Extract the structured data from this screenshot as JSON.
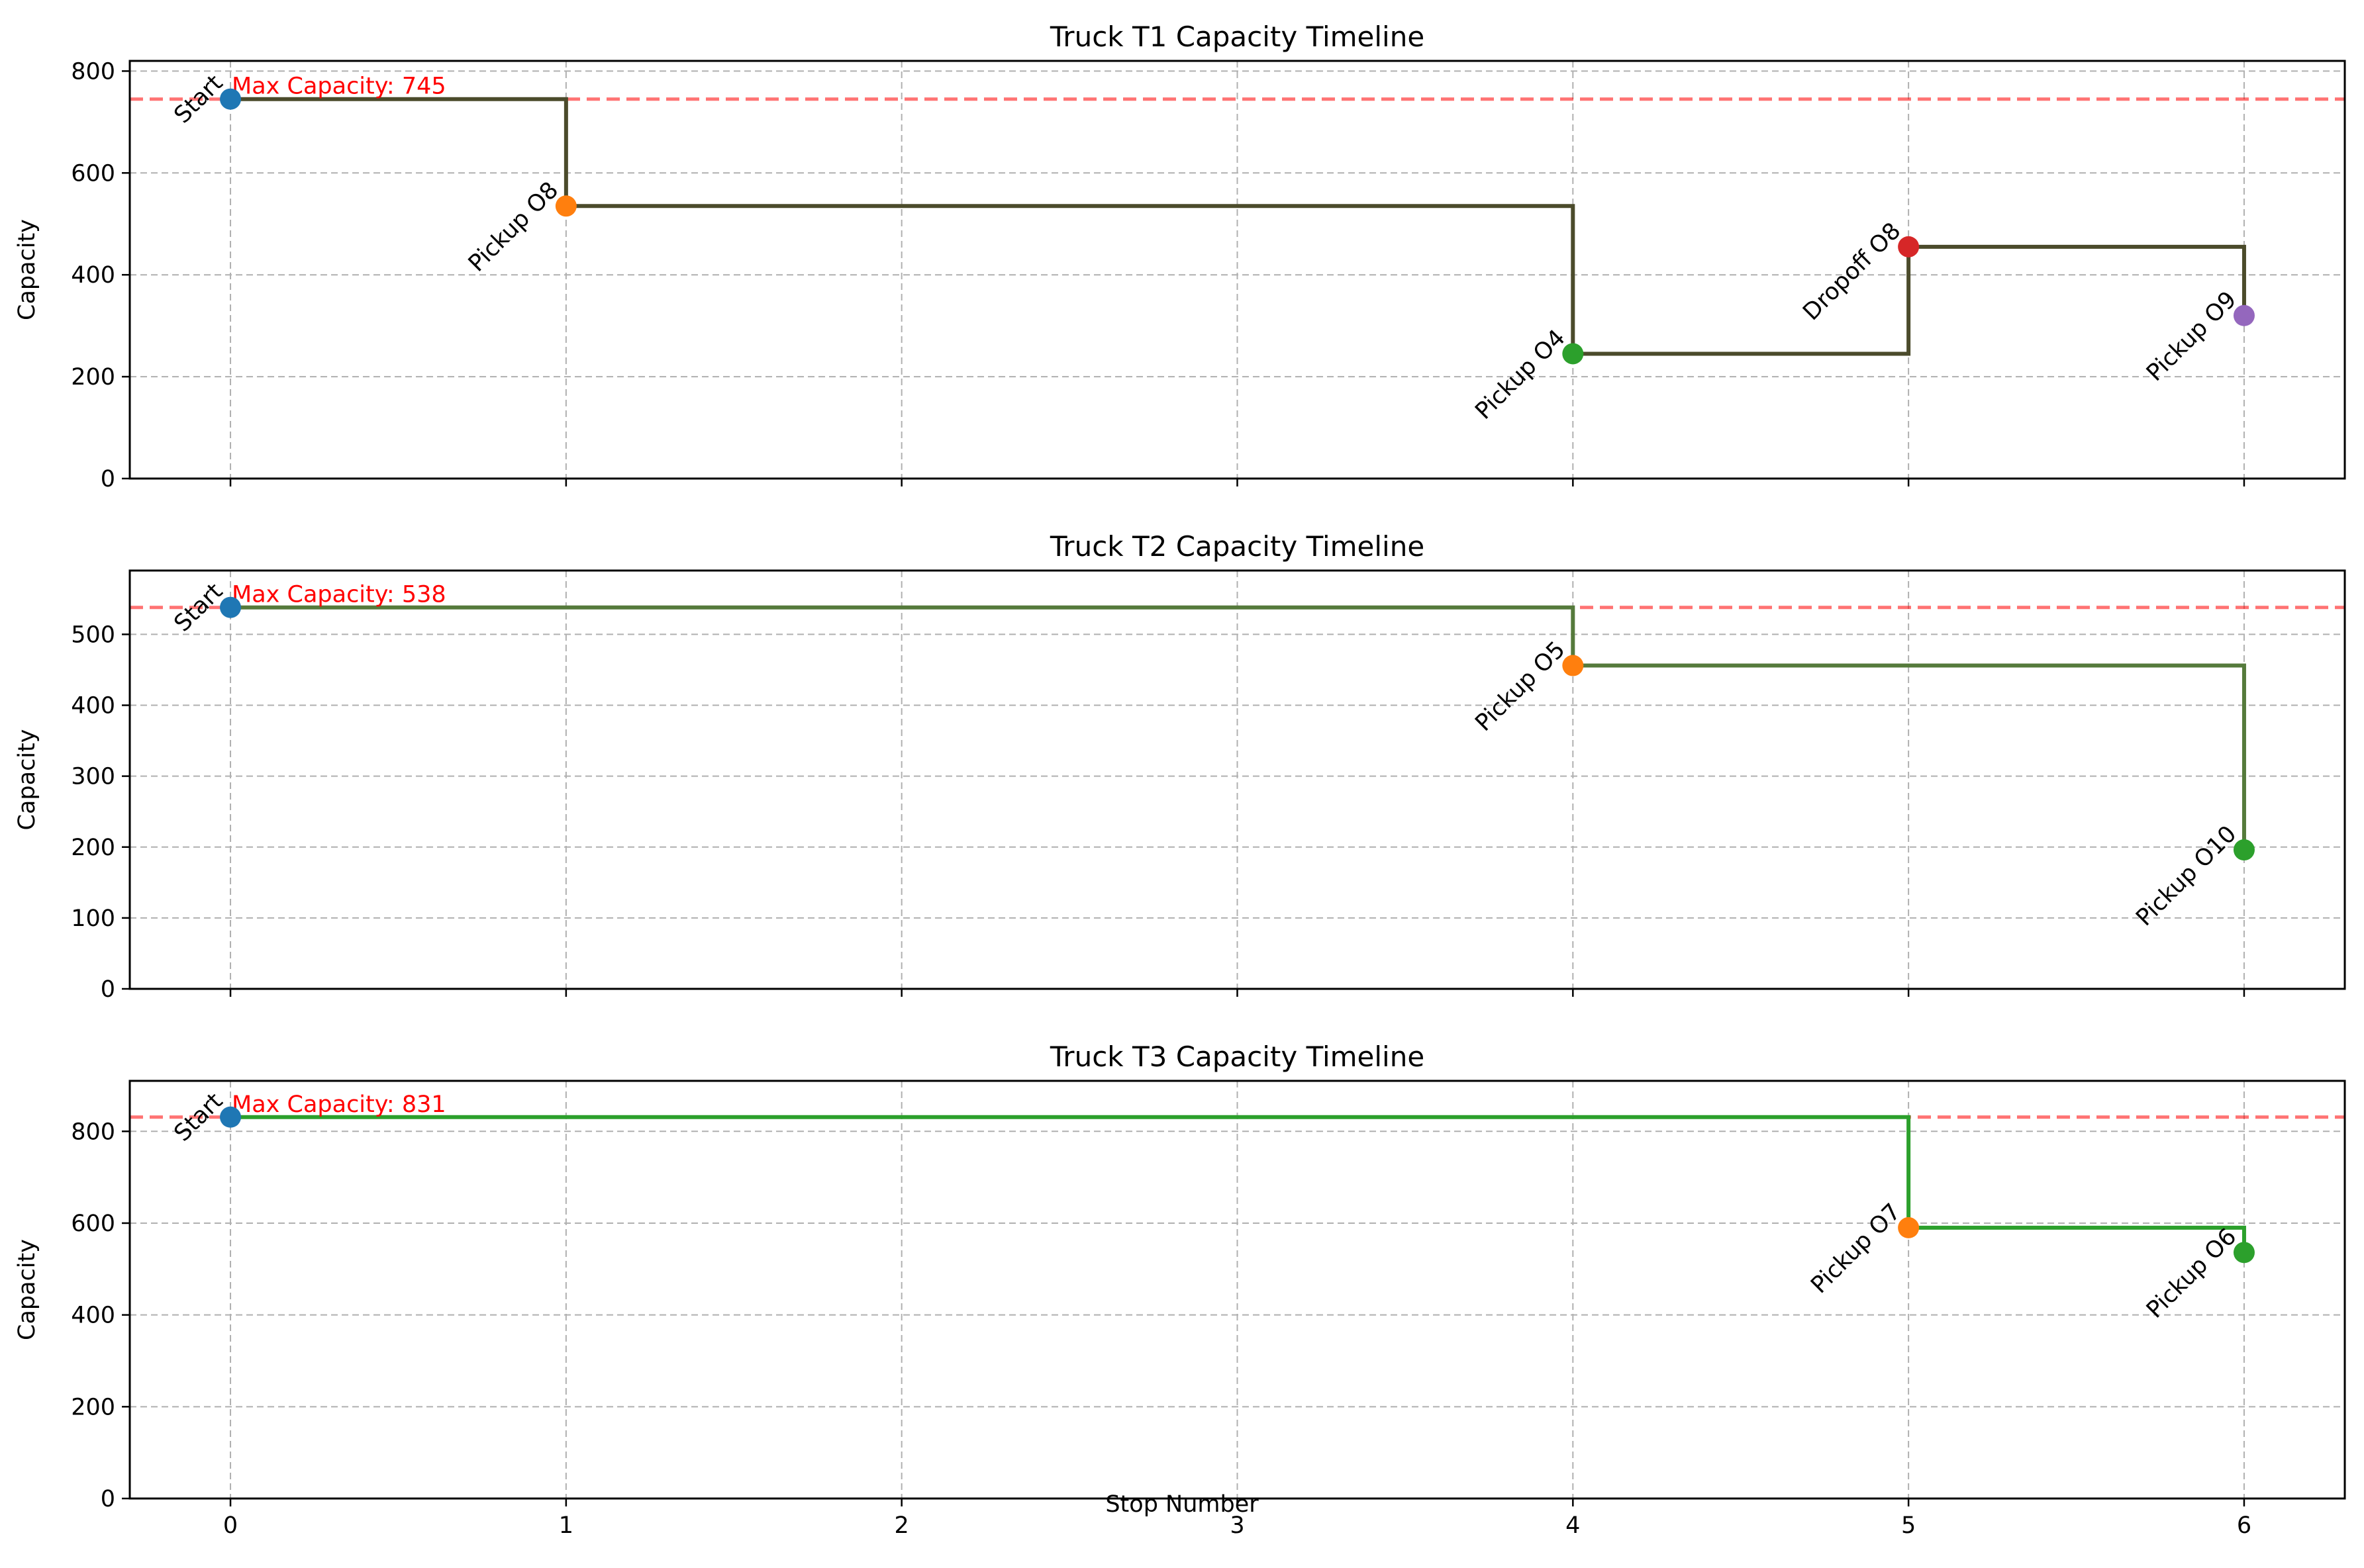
{
  "xlabel": "Stop Number",
  "chart_data": [
    {
      "type": "line",
      "title": "Truck T1 Capacity Timeline",
      "ylabel": "Capacity",
      "xlim": [
        -0.3,
        6.3
      ],
      "ylim": [
        0,
        820
      ],
      "xticks": [
        0,
        1,
        2,
        3,
        4,
        5,
        6
      ],
      "yticks": [
        0,
        200,
        400,
        600,
        800
      ],
      "grid": true,
      "line_color": "#4b4b2b",
      "max_capacity": {
        "value": 745,
        "label": "Max Capacity: 745",
        "color": "#ff0000"
      },
      "points": [
        {
          "x": 0,
          "y": 745,
          "label": "Start",
          "color": "#1f77b4"
        },
        {
          "x": 1,
          "y": 535,
          "label": "Pickup O8",
          "color": "#ff7f0e"
        },
        {
          "x": 4,
          "y": 245,
          "label": "Pickup O4",
          "color": "#2ca02c"
        },
        {
          "x": 5,
          "y": 455,
          "label": "Dropoff O8",
          "color": "#d62728"
        },
        {
          "x": 6,
          "y": 320,
          "label": "Pickup O9",
          "color": "#9467bd"
        }
      ]
    },
    {
      "type": "line",
      "title": "Truck T2 Capacity Timeline",
      "ylabel": "Capacity",
      "xlim": [
        -0.3,
        6.3
      ],
      "ylim": [
        0,
        590
      ],
      "xticks": [
        0,
        1,
        2,
        3,
        4,
        5,
        6
      ],
      "yticks": [
        0,
        100,
        200,
        300,
        400,
        500
      ],
      "grid": true,
      "line_color": "#557a3b",
      "max_capacity": {
        "value": 538,
        "label": "Max Capacity: 538",
        "color": "#ff0000"
      },
      "points": [
        {
          "x": 0,
          "y": 538,
          "label": "Start",
          "color": "#1f77b4"
        },
        {
          "x": 4,
          "y": 456,
          "label": "Pickup O5",
          "color": "#ff7f0e"
        },
        {
          "x": 6,
          "y": 196,
          "label": "Pickup O10",
          "color": "#2ca02c"
        }
      ]
    },
    {
      "type": "line",
      "title": "Truck T3 Capacity Timeline",
      "ylabel": "Capacity",
      "xlim": [
        -0.3,
        6.3
      ],
      "ylim": [
        0,
        910
      ],
      "xticks": [
        0,
        1,
        2,
        3,
        4,
        5,
        6
      ],
      "yticks": [
        0,
        200,
        400,
        600,
        800
      ],
      "grid": true,
      "line_color": "#2ca02c",
      "max_capacity": {
        "value": 831,
        "label": "Max Capacity: 831",
        "color": "#ff0000"
      },
      "points": [
        {
          "x": 0,
          "y": 831,
          "label": "Start",
          "color": "#1f77b4"
        },
        {
          "x": 5,
          "y": 590,
          "label": "Pickup O7",
          "color": "#ff7f0e"
        },
        {
          "x": 6,
          "y": 536,
          "label": "Pickup O6",
          "color": "#2ca02c"
        }
      ]
    }
  ]
}
